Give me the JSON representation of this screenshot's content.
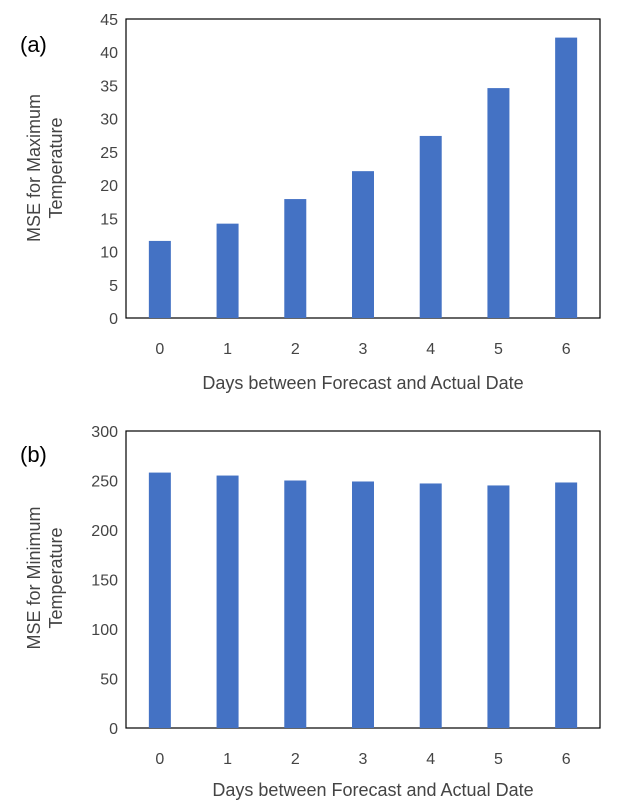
{
  "chart_data": [
    {
      "type": "bar",
      "panel_label": "(a)",
      "categories": [
        "0",
        "1",
        "2",
        "3",
        "4",
        "5",
        "6"
      ],
      "values": [
        11.6,
        14.2,
        17.9,
        22.1,
        27.4,
        34.6,
        42.2
      ],
      "xlabel": "Days between Forecast and Actual Date",
      "ylabel_lines": [
        "MSE for Maximum",
        "Temperature"
      ],
      "ylim": [
        0,
        45
      ],
      "yticks": [
        "0",
        "5",
        "10",
        "15",
        "20",
        "25",
        "30",
        "35",
        "40",
        "45"
      ],
      "grid": false,
      "bar_color": "#4472c4"
    },
    {
      "type": "bar",
      "panel_label": "(b)",
      "categories": [
        "0",
        "1",
        "2",
        "3",
        "4",
        "5",
        "6"
      ],
      "values": [
        258,
        255,
        250,
        249,
        247,
        245,
        248
      ],
      "xlabel": "Days between Forecast and Actual Date",
      "ylabel_lines": [
        "MSE for Minimum",
        "Temperature"
      ],
      "ylim": [
        0,
        300
      ],
      "yticks": [
        "0",
        "50",
        "100",
        "150",
        "200",
        "250",
        "300"
      ],
      "grid": false,
      "bar_color": "#4472c4"
    }
  ]
}
